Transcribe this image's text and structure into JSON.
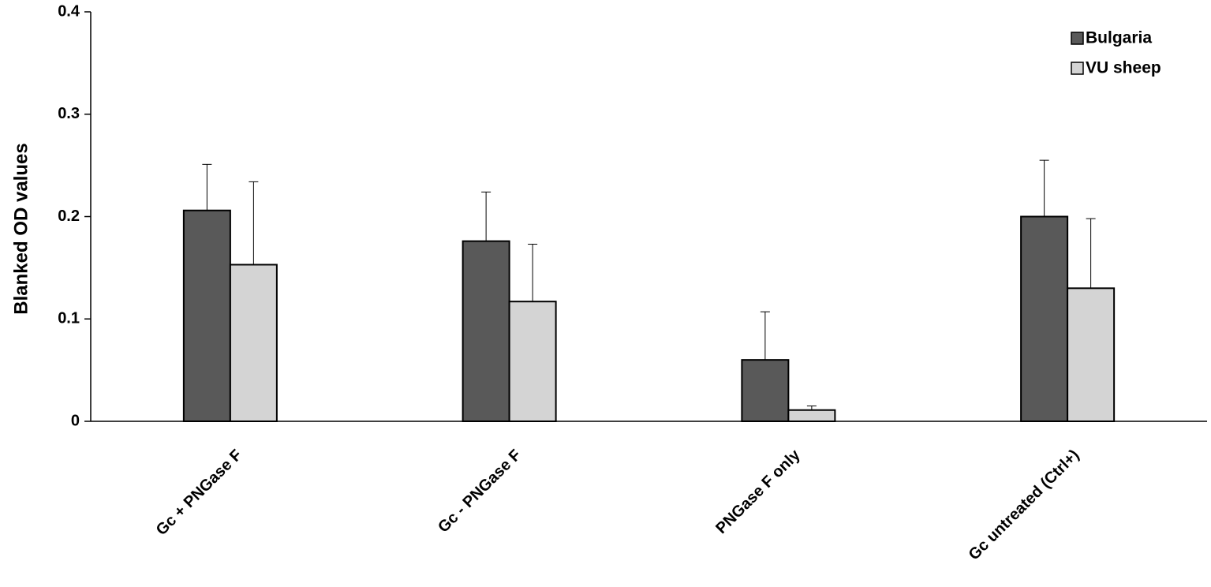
{
  "chart_data": {
    "type": "bar",
    "y_label": "Blanked OD values",
    "categories": [
      "Gc + PNGase F",
      "Gc - PNGase F",
      "PNGase F only",
      "Gc untreated (Ctrl+)"
    ],
    "series": [
      {
        "name": "Bulgaria",
        "color": "#595959",
        "values": [
          0.206,
          0.176,
          0.06,
          0.2
        ],
        "errors": [
          0.045,
          0.048,
          0.047,
          0.055
        ]
      },
      {
        "name": "VU sheep",
        "color": "#d4d4d4",
        "values": [
          0.153,
          0.117,
          0.011,
          0.13
        ],
        "errors": [
          0.081,
          0.056,
          0.004,
          0.068
        ]
      }
    ],
    "ylim": [
      0,
      0.4
    ],
    "yticks": [
      0,
      0.1,
      0.2,
      0.3,
      0.4
    ],
    "legend": "top-right"
  }
}
